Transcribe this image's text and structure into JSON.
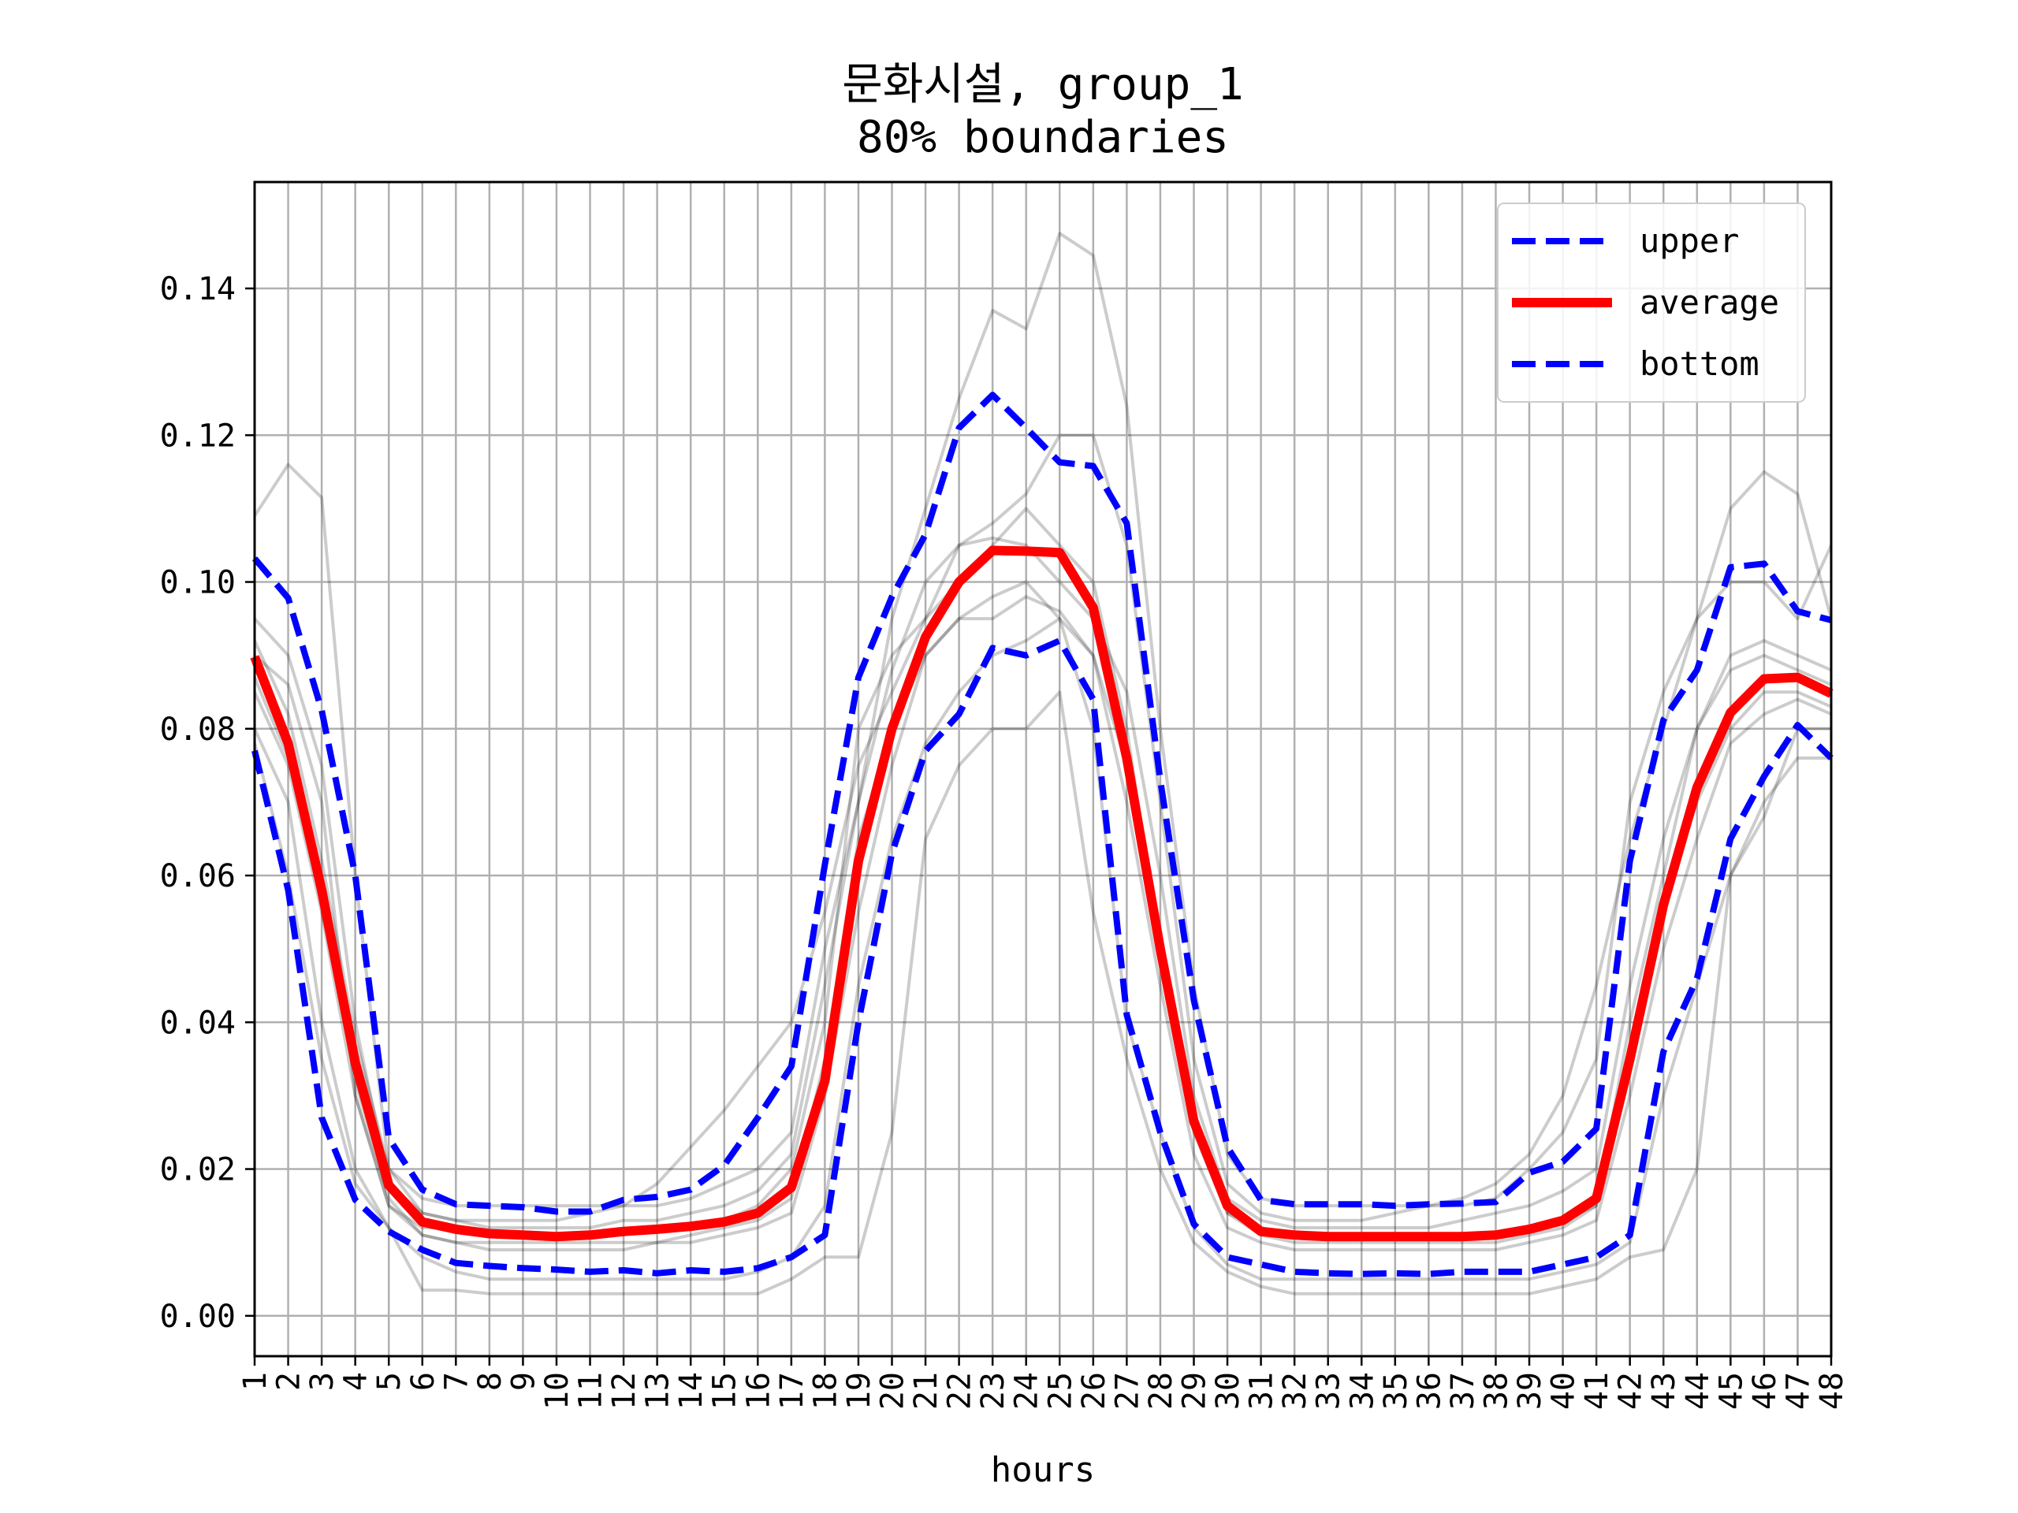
{
  "chart_data": {
    "type": "line",
    "title": "문화시설, group_1",
    "subtitle": "80% boundaries",
    "xlabel": "hours",
    "ylabel": "",
    "x": [
      1,
      2,
      3,
      4,
      5,
      6,
      7,
      8,
      9,
      10,
      11,
      12,
      13,
      14,
      15,
      16,
      17,
      18,
      19,
      20,
      21,
      22,
      23,
      24,
      25,
      26,
      27,
      28,
      29,
      30,
      31,
      32,
      33,
      34,
      35,
      36,
      37,
      38,
      39,
      40,
      41,
      42,
      43,
      44,
      45,
      46,
      47,
      48
    ],
    "x_tick_labels": [
      "1",
      "2",
      "3",
      "4",
      "5",
      "6",
      "7",
      "8",
      "9",
      "10",
      "11",
      "12",
      "13",
      "14",
      "15",
      "16",
      "17",
      "18",
      "19",
      "20",
      "21",
      "22",
      "23",
      "24",
      "25",
      "26",
      "27",
      "28",
      "29",
      "30",
      "31",
      "32",
      "33",
      "34",
      "35",
      "36",
      "37",
      "38",
      "39",
      "40",
      "41",
      "42",
      "43",
      "44",
      "45",
      "46",
      "47",
      "48"
    ],
    "y_tick_labels": [
      "0.00",
      "0.02",
      "0.04",
      "0.06",
      "0.08",
      "0.10",
      "0.12",
      "0.14"
    ],
    "y_ticks": [
      0,
      0.02,
      0.04,
      0.06,
      0.08,
      0.1,
      0.12,
      0.14
    ],
    "xlim": [
      1,
      48
    ],
    "ylim": [
      -0.0055,
      0.1545
    ],
    "grid": true,
    "legend_placement": "top-right",
    "series": [
      {
        "name": "upper",
        "style": "dashed",
        "color": "#0000ff",
        "values": [
          0.1032,
          0.0978,
          0.0825,
          0.06,
          0.0242,
          0.0172,
          0.0152,
          0.015,
          0.0148,
          0.0142,
          0.0142,
          0.0158,
          0.0162,
          0.0172,
          0.0205,
          0.027,
          0.034,
          0.0615,
          0.087,
          0.098,
          0.1065,
          0.121,
          0.1255,
          0.121,
          0.1163,
          0.1158,
          0.108,
          0.073,
          0.043,
          0.023,
          0.0158,
          0.0152,
          0.0152,
          0.0152,
          0.015,
          0.0152,
          0.0153,
          0.0155,
          0.0195,
          0.021,
          0.0255,
          0.062,
          0.0812,
          0.088,
          0.102,
          0.1025,
          0.096,
          0.0948
        ]
      },
      {
        "name": "average",
        "style": "solid",
        "color": "#ff0000",
        "values": [
          0.0898,
          0.078,
          0.058,
          0.0345,
          0.0178,
          0.0128,
          0.0118,
          0.0112,
          0.011,
          0.0108,
          0.011,
          0.0115,
          0.0118,
          0.0122,
          0.0128,
          0.014,
          0.0175,
          0.032,
          0.062,
          0.08,
          0.0925,
          0.1,
          0.1043,
          0.1042,
          0.104,
          0.0965,
          0.076,
          0.05,
          0.0265,
          0.015,
          0.0115,
          0.011,
          0.0108,
          0.0108,
          0.0108,
          0.0108,
          0.0108,
          0.011,
          0.0118,
          0.013,
          0.016,
          0.035,
          0.056,
          0.072,
          0.0822,
          0.0868,
          0.087,
          0.0848
        ]
      },
      {
        "name": "bottom",
        "style": "dashed",
        "color": "#0000ff",
        "values": [
          0.077,
          0.058,
          0.027,
          0.0158,
          0.0115,
          0.009,
          0.0072,
          0.0068,
          0.0065,
          0.0063,
          0.006,
          0.0062,
          0.0058,
          0.0062,
          0.006,
          0.0065,
          0.008,
          0.011,
          0.04,
          0.063,
          0.077,
          0.082,
          0.091,
          0.09,
          0.092,
          0.084,
          0.041,
          0.025,
          0.0125,
          0.008,
          0.007,
          0.006,
          0.0058,
          0.0057,
          0.0058,
          0.0057,
          0.006,
          0.006,
          0.006,
          0.007,
          0.008,
          0.011,
          0.036,
          0.046,
          0.065,
          0.0735,
          0.0805,
          0.076
        ]
      }
    ],
    "background_series": [
      {
        "values": [
          0.109,
          0.116,
          0.1115,
          0.06,
          0.02,
          0.016,
          0.015,
          0.015,
          0.015,
          0.015,
          0.015,
          0.015,
          0.015,
          0.016,
          0.018,
          0.02,
          0.025,
          0.05,
          0.07,
          0.095,
          0.11,
          0.125,
          0.137,
          0.1345,
          0.1475,
          0.1445,
          0.124,
          0.08,
          0.045,
          0.022,
          0.016,
          0.015,
          0.015,
          0.015,
          0.015,
          0.015,
          0.015,
          0.016,
          0.02,
          0.025,
          0.035,
          0.07,
          0.085,
          0.095,
          0.11,
          0.115,
          0.112,
          0.095
        ]
      },
      {
        "values": [
          0.09,
          0.086,
          0.07,
          0.03,
          0.015,
          0.012,
          0.012,
          0.011,
          0.011,
          0.011,
          0.011,
          0.011,
          0.012,
          0.012,
          0.013,
          0.015,
          0.02,
          0.04,
          0.08,
          0.09,
          0.095,
          0.1,
          0.105,
          0.11,
          0.105,
          0.1,
          0.08,
          0.05,
          0.025,
          0.014,
          0.012,
          0.011,
          0.011,
          0.011,
          0.011,
          0.011,
          0.011,
          0.011,
          0.012,
          0.013,
          0.015,
          0.04,
          0.06,
          0.08,
          0.09,
          0.092,
          0.09,
          0.088
        ]
      },
      {
        "values": [
          0.08,
          0.07,
          0.04,
          0.02,
          0.012,
          0.0035,
          0.0035,
          0.003,
          0.003,
          0.003,
          0.003,
          0.003,
          0.003,
          0.003,
          0.003,
          0.003,
          0.005,
          0.008,
          0.008,
          0.025,
          0.065,
          0.075,
          0.08,
          0.08,
          0.085,
          0.055,
          0.035,
          0.02,
          0.01,
          0.006,
          0.004,
          0.003,
          0.003,
          0.003,
          0.003,
          0.003,
          0.003,
          0.003,
          0.003,
          0.004,
          0.005,
          0.008,
          0.009,
          0.02,
          0.06,
          0.07,
          0.076,
          0.076
        ]
      },
      {
        "values": [
          0.095,
          0.09,
          0.075,
          0.04,
          0.018,
          0.014,
          0.013,
          0.013,
          0.013,
          0.013,
          0.014,
          0.015,
          0.018,
          0.023,
          0.028,
          0.034,
          0.04,
          0.055,
          0.075,
          0.085,
          0.095,
          0.105,
          0.108,
          0.112,
          0.12,
          0.12,
          0.105,
          0.07,
          0.035,
          0.018,
          0.014,
          0.013,
          0.013,
          0.013,
          0.014,
          0.015,
          0.016,
          0.018,
          0.022,
          0.03,
          0.045,
          0.065,
          0.08,
          0.095,
          0.1,
          0.1,
          0.095,
          0.105
        ]
      },
      {
        "values": [
          0.085,
          0.075,
          0.055,
          0.03,
          0.015,
          0.011,
          0.01,
          0.009,
          0.009,
          0.009,
          0.009,
          0.009,
          0.01,
          0.01,
          0.011,
          0.012,
          0.014,
          0.03,
          0.055,
          0.075,
          0.09,
          0.095,
          0.098,
          0.1,
          0.095,
          0.09,
          0.07,
          0.045,
          0.022,
          0.012,
          0.01,
          0.009,
          0.009,
          0.009,
          0.009,
          0.009,
          0.009,
          0.009,
          0.01,
          0.011,
          0.013,
          0.03,
          0.05,
          0.065,
          0.078,
          0.082,
          0.084,
          0.082
        ]
      },
      {
        "values": [
          0.078,
          0.06,
          0.035,
          0.018,
          0.012,
          0.008,
          0.006,
          0.005,
          0.005,
          0.005,
          0.005,
          0.005,
          0.005,
          0.005,
          0.005,
          0.006,
          0.008,
          0.015,
          0.045,
          0.065,
          0.078,
          0.085,
          0.09,
          0.092,
          0.095,
          0.08,
          0.04,
          0.025,
          0.012,
          0.007,
          0.005,
          0.005,
          0.005,
          0.005,
          0.005,
          0.005,
          0.005,
          0.005,
          0.005,
          0.006,
          0.007,
          0.01,
          0.03,
          0.045,
          0.06,
          0.068,
          0.08,
          0.08
        ]
      },
      {
        "values": [
          0.092,
          0.082,
          0.062,
          0.038,
          0.02,
          0.014,
          0.013,
          0.012,
          0.012,
          0.012,
          0.012,
          0.013,
          0.013,
          0.014,
          0.015,
          0.017,
          0.022,
          0.045,
          0.07,
          0.088,
          0.1,
          0.105,
          0.106,
          0.105,
          0.1,
          0.095,
          0.085,
          0.06,
          0.03,
          0.016,
          0.013,
          0.012,
          0.012,
          0.012,
          0.012,
          0.012,
          0.013,
          0.014,
          0.015,
          0.017,
          0.02,
          0.045,
          0.065,
          0.08,
          0.088,
          0.09,
          0.088,
          0.086
        ]
      },
      {
        "values": [
          0.087,
          0.076,
          0.058,
          0.032,
          0.016,
          0.011,
          0.01,
          0.01,
          0.01,
          0.01,
          0.01,
          0.01,
          0.01,
          0.011,
          0.012,
          0.013,
          0.016,
          0.035,
          0.065,
          0.08,
          0.09,
          0.095,
          0.095,
          0.098,
          0.096,
          0.09,
          0.075,
          0.052,
          0.028,
          0.014,
          0.011,
          0.01,
          0.01,
          0.01,
          0.01,
          0.01,
          0.01,
          0.01,
          0.011,
          0.012,
          0.015,
          0.033,
          0.056,
          0.07,
          0.08,
          0.085,
          0.085,
          0.083
        ]
      }
    ]
  }
}
